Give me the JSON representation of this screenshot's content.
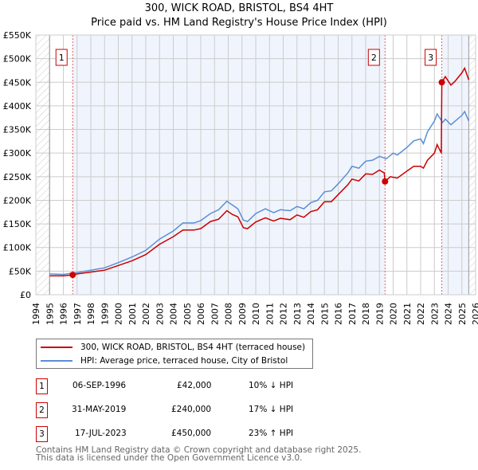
{
  "chart_data": {
    "type": "line",
    "title": "300, WICK ROAD, BRISTOL, BS4 4HT",
    "subtitle": "Price paid vs. HM Land Registry's House Price Index (HPI)",
    "xlim": [
      1994,
      2026
    ],
    "ylim": [
      0,
      550000
    ],
    "x_ticks": [
      "1994",
      "1995",
      "1996",
      "1997",
      "1998",
      "1999",
      "2000",
      "2001",
      "2002",
      "2003",
      "2004",
      "2005",
      "2006",
      "2007",
      "2008",
      "2009",
      "2010",
      "2011",
      "2012",
      "2013",
      "2014",
      "2015",
      "2016",
      "2017",
      "2018",
      "2019",
      "2020",
      "2021",
      "2022",
      "2023",
      "2024",
      "2025",
      "2026"
    ],
    "y_ticks": [
      {
        "v": 0,
        "l": "£0"
      },
      {
        "v": 50000,
        "l": "£50K"
      },
      {
        "v": 100000,
        "l": "£100K"
      },
      {
        "v": 150000,
        "l": "£150K"
      },
      {
        "v": 200000,
        "l": "£200K"
      },
      {
        "v": 250000,
        "l": "£250K"
      },
      {
        "v": 300000,
        "l": "£300K"
      },
      {
        "v": 350000,
        "l": "£350K"
      },
      {
        "v": 400000,
        "l": "£400K"
      },
      {
        "v": 450000,
        "l": "£450K"
      },
      {
        "v": 500000,
        "l": "£500K"
      },
      {
        "v": 550000,
        "l": "£550K"
      }
    ],
    "series": [
      {
        "name": "300, WICK ROAD, BRISTOL, BS4 4HT (terraced house)",
        "color": "#cc0000",
        "x": [
          1995,
          1996,
          1996.68,
          1997,
          1998,
          1999,
          2000,
          2001,
          2002,
          2003,
          2004,
          2004.7,
          2005.5,
          2006,
          2006.7,
          2007.3,
          2007.9,
          2008.3,
          2008.7,
          2009.1,
          2009.4,
          2010,
          2010.7,
          2011.3,
          2011.8,
          2012.5,
          2013,
          2013.5,
          2014,
          2014.5,
          2015,
          2015.5,
          2016,
          2016.7,
          2017,
          2017.5,
          2018,
          2018.5,
          2019,
          2019.35,
          2019.41,
          2019.8,
          2020.3,
          2021,
          2021.5,
          2022,
          2022.2,
          2022.5,
          2023,
          2023.2,
          2023.5,
          2023.54,
          2023.8,
          2024.2,
          2024.5,
          2025,
          2025.2,
          2025.5
        ],
        "y": [
          40000,
          40000,
          42000,
          44000,
          48000,
          52000,
          62000,
          72000,
          85000,
          107000,
          123000,
          137000,
          137000,
          140000,
          155000,
          160000,
          178000,
          170000,
          165000,
          142000,
          140000,
          154000,
          163000,
          156000,
          162000,
          159000,
          169000,
          164000,
          176000,
          180000,
          197000,
          197000,
          212000,
          233000,
          245000,
          241000,
          256000,
          255000,
          264000,
          258000,
          240000,
          250000,
          247000,
          262000,
          272000,
          272000,
          268000,
          285000,
          300000,
          318000,
          300000,
          450000,
          462000,
          444000,
          452000,
          470000,
          480000,
          455000
        ]
      },
      {
        "name": "HPI: Average price, terraced house, City of Bristol",
        "color": "#5b8fd4",
        "x": [
          1995,
          1996,
          1996.7,
          1997,
          1998,
          1999,
          2000,
          2001,
          2002,
          2003,
          2004,
          2004.7,
          2005.5,
          2006,
          2006.7,
          2007.3,
          2007.9,
          2008.3,
          2008.7,
          2009.1,
          2009.4,
          2010,
          2010.7,
          2011.3,
          2011.8,
          2012.5,
          2013,
          2013.5,
          2014,
          2014.5,
          2015,
          2015.5,
          2016,
          2016.7,
          2017,
          2017.5,
          2018,
          2018.5,
          2019,
          2019.5,
          2020,
          2020.3,
          2021,
          2021.5,
          2022,
          2022.2,
          2022.5,
          2023,
          2023.2,
          2023.6,
          2023.8,
          2024.2,
          2025,
          2025.2,
          2025.5
        ],
        "y": [
          44000,
          43000,
          46000,
          47000,
          52000,
          57000,
          68000,
          80000,
          94000,
          118000,
          135000,
          152000,
          152000,
          157000,
          172000,
          180000,
          198000,
          190000,
          182000,
          158000,
          155000,
          172000,
          182000,
          174000,
          180000,
          178000,
          187000,
          182000,
          195000,
          200000,
          218000,
          220000,
          235000,
          258000,
          272000,
          268000,
          283000,
          285000,
          293000,
          288000,
          300000,
          296000,
          312000,
          326000,
          330000,
          320000,
          345000,
          368000,
          383000,
          365000,
          372000,
          360000,
          380000,
          388000,
          368000
        ]
      }
    ],
    "sales": [
      {
        "n": "1",
        "x": 1996.68,
        "date": "06-SEP-1996",
        "price": "£42,000",
        "value": 42000,
        "hpi": "10% ↓ HPI"
      },
      {
        "n": "2",
        "x": 2019.41,
        "date": "31-MAY-2019",
        "price": "£240,000",
        "value": 240000,
        "hpi": "17% ↓ HPI"
      },
      {
        "n": "3",
        "x": 2023.54,
        "date": "17-JUL-2023",
        "price": "£450,000",
        "value": 450000,
        "hpi": "23% ↑ HPI"
      }
    ],
    "legend": {
      "placement": "below",
      "entries": [
        "300, WICK ROAD, BRISTOL, BS4 4HT (terraced house)",
        "HPI: Average price, terraced house, City of Bristol"
      ]
    },
    "footer": [
      "Contains HM Land Registry data © Crown copyright and database right 2025.",
      "This data is licensed under the Open Government Licence v3.0."
    ]
  }
}
